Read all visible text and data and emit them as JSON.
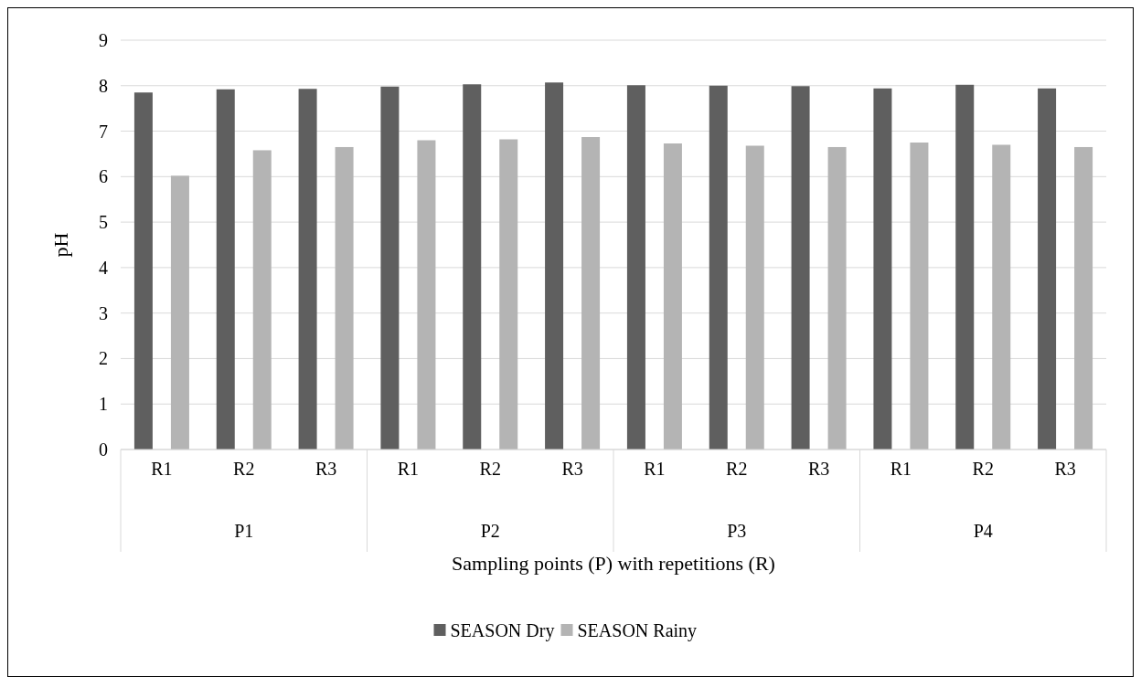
{
  "chart_data": {
    "type": "bar",
    "ylabel": "pH",
    "xlabel": "Sampling points (P) with repetitions (R)",
    "categories": [
      "R1",
      "R2",
      "R3",
      "R1",
      "R2",
      "R3",
      "R1",
      "R2",
      "R3",
      "R1",
      "R2",
      "R3"
    ],
    "annotations": [
      "P1",
      "P2",
      "P3",
      "P4"
    ],
    "series": [
      {
        "name": "SEASON Dry",
        "color": "#5f5f5f",
        "values": [
          7.85,
          7.92,
          7.93,
          7.98,
          8.03,
          8.07,
          8.01,
          8.0,
          7.99,
          7.94,
          8.02,
          7.94
        ]
      },
      {
        "name": "SEASON Rainy",
        "color": "#b4b4b4",
        "values": [
          6.02,
          6.58,
          6.65,
          6.8,
          6.82,
          6.87,
          6.73,
          6.68,
          6.65,
          6.75,
          6.7,
          6.65
        ]
      }
    ],
    "ylim": [
      0,
      9
    ],
    "yticks": [
      0,
      1,
      2,
      3,
      4,
      5,
      6,
      7,
      8,
      9
    ],
    "grid": "y",
    "legend": "bottom"
  }
}
